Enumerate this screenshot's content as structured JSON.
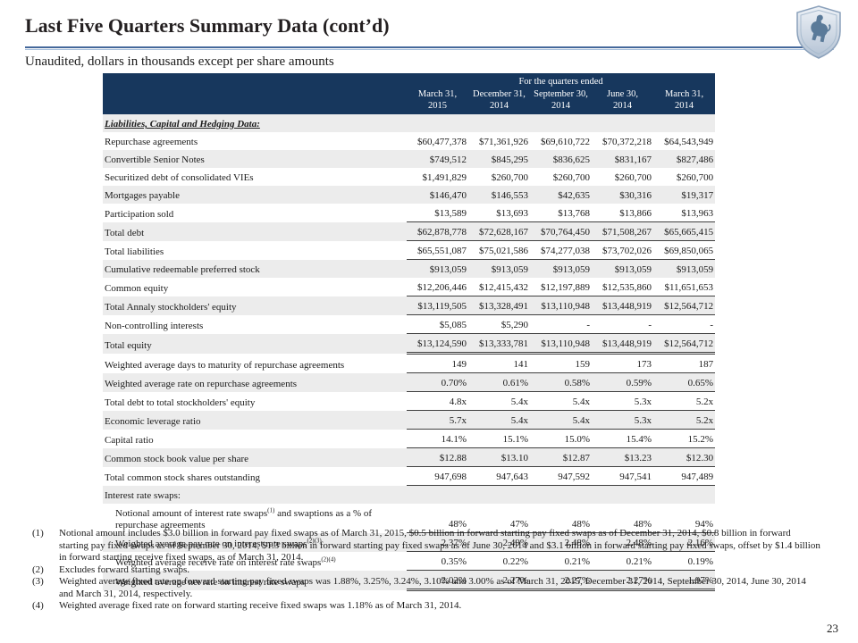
{
  "header": {
    "title": "Last Five Quarters Summary Data (cont’d)",
    "subtitle": "Unaudited, dollars in thousands except per share amounts"
  },
  "table": {
    "quarters_caption": "For the quarters ended",
    "columns": [
      {
        "date": "March 31,",
        "year": "2015"
      },
      {
        "date": "December 31,",
        "year": "2014"
      },
      {
        "date": "September 30,",
        "year": "2014"
      },
      {
        "date": "June 30,",
        "year": "2014"
      },
      {
        "date": "March 31,",
        "year": "2014"
      }
    ],
    "rows": [
      {
        "section": true,
        "em": true,
        "label": "Liabilities, Capital and Hedging Data:"
      },
      {
        "label": "Repurchase agreements",
        "values": [
          "$60,477,378",
          "$71,361,926",
          "$69,610,722",
          "$70,372,218",
          "$64,543,949"
        ]
      },
      {
        "label": "Convertible Senior Notes",
        "values": [
          "$749,512",
          "$845,295",
          "$836,625",
          "$831,167",
          "$827,486"
        ]
      },
      {
        "label": "Securitized debt of consolidated VIEs",
        "values": [
          "$1,491,829",
          "$260,700",
          "$260,700",
          "$260,700",
          "$260,700"
        ]
      },
      {
        "label": "Mortgages payable",
        "values": [
          "$146,470",
          "$146,553",
          "$42,635",
          "$30,316",
          "$19,317"
        ]
      },
      {
        "label": "Participation sold",
        "values": [
          "$13,589",
          "$13,693",
          "$13,768",
          "$13,866",
          "$13,963"
        ]
      },
      {
        "label": "Total debt",
        "values": [
          "$62,878,778",
          "$72,628,167",
          "$70,764,450",
          "$71,508,267",
          "$65,665,415"
        ],
        "rule_top": true,
        "rule": "single"
      },
      {
        "label": "Total liabilities",
        "values": [
          "$65,551,087",
          "$75,021,586",
          "$74,277,038",
          "$73,702,026",
          "$69,850,065"
        ],
        "rule": "single"
      },
      {
        "label": "Cumulative redeemable preferred stock",
        "values": [
          "$913,059",
          "$913,059",
          "$913,059",
          "$913,059",
          "$913,059"
        ]
      },
      {
        "label": "Common equity",
        "values": [
          "$12,206,446",
          "$12,415,432",
          "$12,197,889",
          "$12,535,860",
          "$11,651,653"
        ]
      },
      {
        "label": "Total Annaly stockholders' equity",
        "values": [
          "$13,119,505",
          "$13,328,491",
          "$13,110,948",
          "$13,448,919",
          "$12,564,712"
        ],
        "rule_top": true,
        "rule": "single"
      },
      {
        "label": "Non-controlling interests",
        "values": [
          "$5,085",
          "$5,290",
          "-",
          "-",
          "-"
        ]
      },
      {
        "label": "Total  equity",
        "values": [
          "$13,124,590",
          "$13,333,781",
          "$13,110,948",
          "$13,448,919",
          "$12,564,712"
        ],
        "rule_top": true,
        "rule": "double"
      },
      {
        "label": "Weighted average days to maturity of repurchase agreements",
        "values": [
          "149",
          "141",
          "159",
          "173",
          "187"
        ],
        "rule": "single"
      },
      {
        "label": "Weighted average rate on repurchase agreements",
        "values": [
          "0.70%",
          "0.61%",
          "0.58%",
          "0.59%",
          "0.65%"
        ],
        "rule": "single"
      },
      {
        "label": "Total debt to total stockholders' equity",
        "values": [
          "4.8x",
          "5.4x",
          "5.4x",
          "5.3x",
          "5.2x"
        ],
        "rule": "single"
      },
      {
        "label": "Economic leverage ratio",
        "values": [
          "5.7x",
          "5.4x",
          "5.4x",
          "5.3x",
          "5.2x"
        ],
        "rule": "single"
      },
      {
        "label": "Capital ratio",
        "values": [
          "14.1%",
          "15.1%",
          "15.0%",
          "15.4%",
          "15.2%"
        ],
        "rule": "single"
      },
      {
        "label": "Common stock book value per share",
        "values": [
          "$12.88",
          "$13.10",
          "$12.87",
          "$13.23",
          "$12.30"
        ],
        "rule": "single"
      },
      {
        "label": "Total common stock shares outstanding",
        "values": [
          "947,698",
          "947,643",
          "947,592",
          "947,541",
          "947,489"
        ],
        "rule": "single"
      },
      {
        "section": true,
        "label": "Interest rate swaps:"
      },
      {
        "indent": true,
        "two_line": true,
        "label": [
          {
            "t": "Notional amount of interest rate swaps"
          },
          {
            "t": "(1)",
            "sup": true
          },
          {
            "t": " and swaptions as a % of repurchase agreements"
          }
        ],
        "values": [
          "48%",
          "47%",
          "48%",
          "48%",
          "94%"
        ],
        "rule": "single"
      },
      {
        "indent": true,
        "label": [
          {
            "t": "Weighted average pay rate on interest rate swaps"
          },
          {
            "t": "(2)(3)",
            "sup": true
          }
        ],
        "values": [
          "2.37%",
          "2.49%",
          "2.48%",
          "2.48%",
          "2.16%"
        ],
        "rule": "single"
      },
      {
        "indent": true,
        "label": [
          {
            "t": "Weighted average receive rate on interest rate swaps"
          },
          {
            "t": "(2)(4)",
            "sup": true
          }
        ],
        "values": [
          "0.35%",
          "0.22%",
          "0.21%",
          "0.21%",
          "0.19%"
        ],
        "rule": "single"
      },
      {
        "indent": true,
        "label": [
          {
            "t": "Weighted average net rate on interest rate swaps"
          }
        ],
        "values": [
          "2.02%",
          "2.27%",
          "2.27%",
          "2.27%",
          "1.97%"
        ],
        "rule": "double"
      }
    ]
  },
  "footnotes": [
    {
      "num": "(1)",
      "text": "Notional amount includes $3.0 billion in forward pay fixed swaps as of March 31, 2015, $0.5 billion in forward starting pay fixed swaps as of December 31, 2014, $0.8 billion in forward starting pay fixed swaps as of September 30, 2014, $1.3 billion in forward starting pay fixed swaps as of June 30, 2014 and $3.1 billion in forward starting pay fixed swaps, offset by $1.4 billion in forward starting receive fixed swaps, as of March 31, 2014."
    },
    {
      "num": "(2)",
      "text": "Excludes forward starting swaps."
    },
    {
      "num": "(3)",
      "text": "Weighted average fixed rate on forward starting pay fixed swaps was 1.88%, 3.25%, 3.24%, 3.10% and 3.00% as of March 31, 2015, December 31, 2014, September 30, 2014, June 30, 2014 and March 31, 2014, respectively."
    },
    {
      "num": "(4)",
      "text": "Weighted average fixed rate on forward starting receive fixed swaps was 1.18% as of March 31, 2014."
    }
  ],
  "page_number": "23",
  "colors": {
    "header_band": "#17375d",
    "stripe": "#ececec",
    "accent_line": "#44689b"
  }
}
